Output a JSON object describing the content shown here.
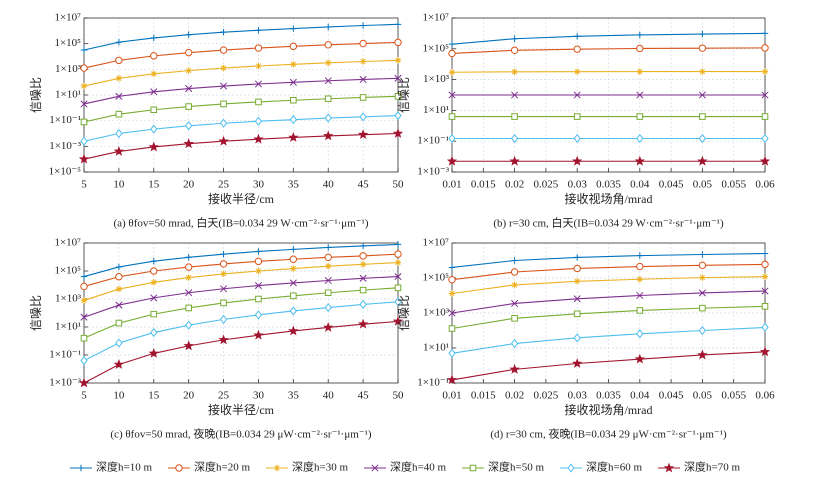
{
  "chart_data": [
    {
      "type": "line",
      "title": "(a) θfov=50 mrad, 白天(IB=0.034 29 W·cm⁻²·sr⁻¹·μm⁻¹)",
      "xlabel": "接收半径/cm",
      "ylabel": "信噪比",
      "legend": "bottom",
      "x": [
        5,
        10,
        15,
        20,
        25,
        30,
        35,
        40,
        45,
        50
      ],
      "xlim": [
        5,
        50
      ],
      "xticks": [
        5,
        10,
        15,
        20,
        25,
        30,
        35,
        40,
        45,
        50
      ],
      "yscale": "log",
      "ylim": [
        1e-05,
        10000000.0
      ],
      "grid": true,
      "yticks": [
        {
          "value": 1e-05,
          "label": "1×10⁻⁵"
        },
        {
          "value": 0.001,
          "label": "1×10⁻³"
        },
        {
          "value": 0.1,
          "label": "1×10⁻¹"
        },
        {
          "value": 10.0,
          "label": "1×10¹"
        },
        {
          "value": 1000.0,
          "label": "1×10³"
        },
        {
          "value": 100000.0,
          "label": "1×10⁵"
        },
        {
          "value": 10000000.0,
          "label": "1×10⁷"
        }
      ],
      "series": [
        {
          "name": "深度h=10 m",
          "color": "#0072bd",
          "marker": "+",
          "values": [
            32000,
            130000,
            280000,
            500000,
            790000,
            1100000,
            1500000,
            2000000,
            2600000,
            3200000
          ]
        },
        {
          "name": "深度h=20 m",
          "color": "#d95319",
          "marker": "o",
          "values": [
            1260,
            5000,
            11200,
            20000,
            31600,
            45700,
            61700,
            81300,
            102000,
            126000
          ]
        },
        {
          "name": "深度h=30 m",
          "color": "#edb120",
          "marker": "*",
          "values": [
            50,
            200,
            447,
            794,
            1260,
            1820,
            2450,
            3240,
            4070,
            5010
          ]
        },
        {
          "name": "深度h=40 m",
          "color": "#7e2f8e",
          "marker": "x",
          "values": [
            2,
            7.9,
            17.8,
            31.6,
            50,
            72,
            98,
            129,
            162,
            200
          ]
        },
        {
          "name": "深度h=50 m",
          "color": "#77ac30",
          "marker": "s",
          "values": [
            0.079,
            0.32,
            0.71,
            1.26,
            2,
            2.9,
            3.9,
            5.1,
            6.5,
            7.9
          ]
        },
        {
          "name": "深度h=60 m",
          "color": "#4dbeee",
          "marker": "d",
          "values": [
            0.0025,
            0.01,
            0.022,
            0.04,
            0.063,
            0.091,
            0.12,
            0.16,
            0.2,
            0.25
          ]
        },
        {
          "name": "深度h=70 m",
          "color": "#a2142f",
          "marker": "p",
          "values": [
            0.0001,
            0.0004,
            0.00089,
            0.0016,
            0.0025,
            0.0036,
            0.0049,
            0.0065,
            0.0081,
            0.01
          ]
        }
      ]
    },
    {
      "type": "line",
      "title": "(b) r=30 cm, 白天(IB=0.034 29 W·cm⁻²·sr⁻¹·μm⁻¹)",
      "xlabel": "接收视场角/mrad",
      "ylabel": "信噪比",
      "x": [
        0.01,
        0.02,
        0.03,
        0.04,
        0.05,
        0.06
      ],
      "xlim": [
        0.01,
        0.06
      ],
      "xticks": [
        0.01,
        0.015,
        0.02,
        0.025,
        0.03,
        0.035,
        0.04,
        0.045,
        0.05,
        0.055,
        0.06
      ],
      "yscale": "log",
      "ylim": [
        0.001,
        10000000.0
      ],
      "grid": true,
      "yticks": [
        {
          "value": 0.001,
          "label": "1×10⁻³"
        },
        {
          "value": 0.1,
          "label": "1×10⁻¹"
        },
        {
          "value": 10.0,
          "label": "1×10¹"
        },
        {
          "value": 1000.0,
          "label": "1×10³"
        },
        {
          "value": 100000.0,
          "label": "1×10⁵"
        },
        {
          "value": 10000000.0,
          "label": "1×10⁷"
        }
      ],
      "series": [
        {
          "color": "#0072bd",
          "marker": "+",
          "values": [
            200000,
            450000,
            650000,
            800000,
            900000,
            1000000
          ]
        },
        {
          "color": "#d95319",
          "marker": "o",
          "values": [
            50000,
            80000,
            95000,
            105000,
            110000,
            115000
          ]
        },
        {
          "color": "#edb120",
          "marker": "*",
          "values": [
            3000,
            3200,
            3250,
            3300,
            3300,
            3300
          ]
        },
        {
          "color": "#7e2f8e",
          "marker": "x",
          "values": [
            100,
            100,
            100,
            100,
            100,
            100
          ]
        },
        {
          "color": "#77ac30",
          "marker": "s",
          "values": [
            4,
            4,
            4,
            4,
            4,
            4
          ]
        },
        {
          "color": "#4dbeee",
          "marker": "d",
          "values": [
            0.15,
            0.15,
            0.15,
            0.15,
            0.15,
            0.15
          ]
        },
        {
          "color": "#a2142f",
          "marker": "p",
          "values": [
            0.005,
            0.005,
            0.005,
            0.005,
            0.005,
            0.005
          ]
        }
      ]
    },
    {
      "type": "line",
      "title": "(c) θfov=50 mrad, 夜晚(IB=0.034 29 μW·cm⁻²·sr⁻¹·μm⁻¹)",
      "xlabel": "接收半径/cm",
      "ylabel": "信噪比",
      "x": [
        5,
        10,
        15,
        20,
        25,
        30,
        35,
        40,
        45,
        50
      ],
      "xlim": [
        5,
        50
      ],
      "xticks": [
        5,
        10,
        15,
        20,
        25,
        30,
        35,
        40,
        45,
        50
      ],
      "yscale": "log",
      "ylim": [
        0.001,
        10000000.0
      ],
      "grid": true,
      "yticks": [
        {
          "value": 0.001,
          "label": "1×10⁻³"
        },
        {
          "value": 0.1,
          "label": "1×10⁻¹"
        },
        {
          "value": 10.0,
          "label": "1×10¹"
        },
        {
          "value": 1000.0,
          "label": "1×10³"
        },
        {
          "value": 100000.0,
          "label": "1×10⁵"
        },
        {
          "value": 10000000.0,
          "label": "1×10⁷"
        }
      ],
      "series": [
        {
          "color": "#0072bd",
          "marker": "+",
          "values": [
            40000,
            195000,
            500000,
            950000,
            1600000,
            2500000,
            3500000,
            4800000,
            6200000,
            7900000
          ]
        },
        {
          "color": "#d95319",
          "marker": "o",
          "values": [
            7900,
            39000,
            100000,
            190000,
            320000,
            490000,
            690000,
            950000,
            1200000,
            1600000
          ]
        },
        {
          "color": "#edb120",
          "marker": "*",
          "values": [
            790,
            5100,
            15500,
            34000,
            62000,
            100000,
            150000,
            220000,
            300000,
            400000
          ]
        },
        {
          "color": "#7e2f8e",
          "marker": "x",
          "values": [
            50,
            370,
            1200,
            2800,
            5400,
            9100,
            14000,
            21000,
            30000,
            40000
          ]
        },
        {
          "color": "#77ac30",
          "marker": "s",
          "values": [
            1.6,
            19,
            83,
            230,
            520,
            1000,
            1700,
            2800,
            4300,
            6300
          ]
        },
        {
          "color": "#4dbeee",
          "marker": "d",
          "values": [
            0.04,
            0.72,
            4,
            13.5,
            35,
            74,
            140,
            245,
            410,
            630
          ]
        },
        {
          "color": "#a2142f",
          "marker": "p",
          "values": [
            0.001,
            0.021,
            0.13,
            0.45,
            1.2,
            2.6,
            5.2,
            9.3,
            16,
            25
          ]
        }
      ]
    },
    {
      "type": "line",
      "title": "(d) r=30 cm, 夜晚(IB=0.034 29 μW·cm⁻²·sr⁻¹·μm⁻¹)",
      "xlabel": "接收视场角/mrad",
      "ylabel": "信噪比",
      "x": [
        0.01,
        0.02,
        0.03,
        0.04,
        0.05,
        0.06
      ],
      "xlim": [
        0.01,
        0.06
      ],
      "xticks": [
        0.01,
        0.015,
        0.02,
        0.025,
        0.03,
        0.035,
        0.04,
        0.045,
        0.05,
        0.055,
        0.06
      ],
      "yscale": "log",
      "ylim": [
        0.1,
        10000000.0
      ],
      "grid": true,
      "yticks": [
        {
          "value": 0.1,
          "label": "1×10⁻¹"
        },
        {
          "value": 10.0,
          "label": "1×10¹"
        },
        {
          "value": 1000.0,
          "label": "1×10³"
        },
        {
          "value": 100000.0,
          "label": "1×10⁵"
        },
        {
          "value": 10000000.0,
          "label": "1×10⁷"
        }
      ],
      "series": [
        {
          "color": "#0072bd",
          "marker": "+",
          "values": [
            400000,
            1000000,
            1500000,
            1900000,
            2200000,
            2500000
          ]
        },
        {
          "color": "#d95319",
          "marker": "o",
          "values": [
            80000,
            220000,
            350000,
            450000,
            530000,
            600000
          ]
        },
        {
          "color": "#edb120",
          "marker": "*",
          "values": [
            13000,
            40000,
            65000,
            85000,
            105000,
            120000
          ]
        },
        {
          "color": "#7e2f8e",
          "marker": "x",
          "values": [
            1000,
            3500,
            6500,
            10000,
            14000,
            18000
          ]
        },
        {
          "color": "#77ac30",
          "marker": "s",
          "values": [
            130,
            500,
            900,
            1400,
            1900,
            2400
          ]
        },
        {
          "color": "#4dbeee",
          "marker": "d",
          "values": [
            5,
            18,
            38,
            65,
            100,
            150
          ]
        },
        {
          "color": "#a2142f",
          "marker": "p",
          "values": [
            0.15,
            0.6,
            1.3,
            2.3,
            4,
            6
          ]
        }
      ]
    }
  ]
}
